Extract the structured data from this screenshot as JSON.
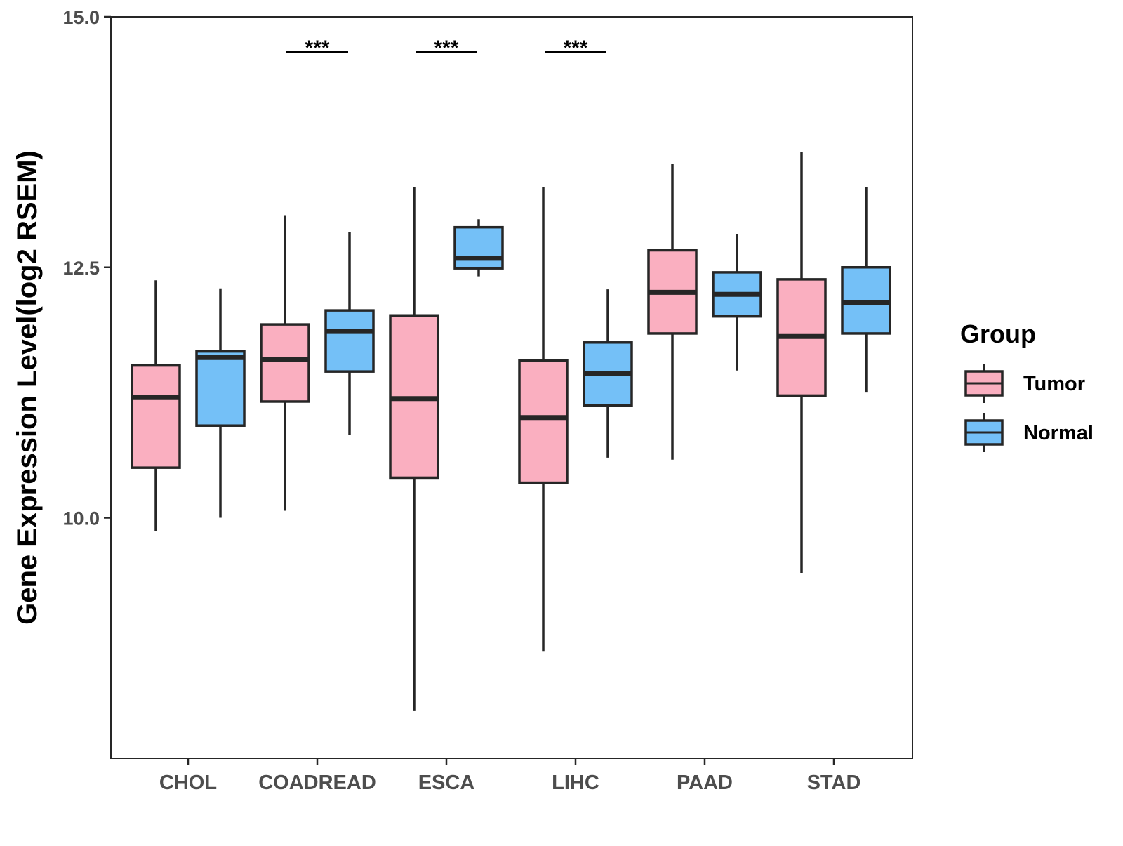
{
  "chart_data": {
    "type": "boxplot",
    "title": "",
    "xlabel": "",
    "ylabel": "Gene Expression Level(log2 RSEM)",
    "ylim": [
      7.6,
      15.0
    ],
    "yticks": [
      10.0,
      12.5,
      15.0
    ],
    "ytick_labels": [
      "10.0",
      "12.5",
      "15.0"
    ],
    "categories": [
      "CHOL",
      "COADREAD",
      "ESCA",
      "LIHC",
      "PAAD",
      "STAD"
    ],
    "legend": {
      "title": "Group",
      "position": "right",
      "entries": [
        {
          "name": "Tumor",
          "color": "#FAAFC0"
        },
        {
          "name": "Normal",
          "color": "#74C0F7"
        }
      ]
    },
    "series": [
      {
        "name": "Tumor",
        "color": "#FAAFC0",
        "boxes": [
          {
            "category": "CHOL",
            "whisker_low": 9.87,
            "q1": 10.5,
            "median": 11.2,
            "q3": 11.52,
            "whisker_high": 12.37
          },
          {
            "category": "COADREAD",
            "whisker_low": 10.07,
            "q1": 11.16,
            "median": 11.58,
            "q3": 11.93,
            "whisker_high": 13.02
          },
          {
            "category": "ESCA",
            "whisker_low": 8.07,
            "q1": 10.4,
            "median": 11.19,
            "q3": 12.02,
            "whisker_high": 13.3
          },
          {
            "category": "LIHC",
            "whisker_low": 8.67,
            "q1": 10.35,
            "median": 11.0,
            "q3": 11.57,
            "whisker_high": 13.3
          },
          {
            "category": "PAAD",
            "whisker_low": 10.58,
            "q1": 11.84,
            "median": 12.25,
            "q3": 12.67,
            "whisker_high": 13.53
          },
          {
            "category": "STAD",
            "whisker_low": 9.45,
            "q1": 11.22,
            "median": 11.81,
            "q3": 12.38,
            "whisker_high": 13.65
          }
        ]
      },
      {
        "name": "Normal",
        "color": "#74C0F7",
        "boxes": [
          {
            "category": "CHOL",
            "whisker_low": 10.0,
            "q1": 10.92,
            "median": 11.6,
            "q3": 11.66,
            "whisker_high": 12.29
          },
          {
            "category": "COADREAD",
            "whisker_low": 10.83,
            "q1": 11.46,
            "median": 11.86,
            "q3": 12.07,
            "whisker_high": 12.85
          },
          {
            "category": "ESCA",
            "whisker_low": 12.41,
            "q1": 12.49,
            "median": 12.59,
            "q3": 12.9,
            "whisker_high": 12.98
          },
          {
            "category": "LIHC",
            "whisker_low": 10.6,
            "q1": 11.12,
            "median": 11.44,
            "q3": 11.75,
            "whisker_high": 12.28
          },
          {
            "category": "PAAD",
            "whisker_low": 11.47,
            "q1": 12.01,
            "median": 12.23,
            "q3": 12.45,
            "whisker_high": 12.83
          },
          {
            "category": "STAD",
            "whisker_low": 11.25,
            "q1": 11.84,
            "median": 12.15,
            "q3": 12.5,
            "whisker_high": 13.3
          }
        ]
      }
    ],
    "significance": [
      {
        "category": "COADREAD",
        "label": "***",
        "y": 14.65
      },
      {
        "category": "ESCA",
        "label": "***",
        "y": 14.65
      },
      {
        "category": "LIHC",
        "label": "***",
        "y": 14.65
      }
    ]
  }
}
